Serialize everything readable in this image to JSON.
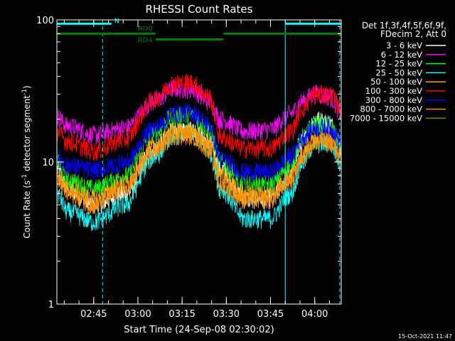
{
  "chart_data": {
    "type": "line",
    "title": "RHESSI Count Rates",
    "xlabel": "Start Time (24-Sep-08 02:30:02)",
    "ylabel_main": "Count Rate (s",
    "ylabel_sup": "-1",
    "ylabel_mid": " detector segment",
    "ylabel_sup2": "-1",
    "ylabel_end": ")",
    "yscale": "log",
    "ylim": [
      1,
      100
    ],
    "xlim_minutes": [
      2.5,
      99
    ],
    "y_ticks": [
      "1",
      "10",
      "100"
    ],
    "x_ticks": [
      {
        "label": "02:45",
        "minute": 15
      },
      {
        "label": "03:00",
        "minute": 30
      },
      {
        "label": "03:15",
        "minute": 45
      },
      {
        "label": "03:30",
        "minute": 60
      },
      {
        "label": "03:45",
        "minute": 75
      },
      {
        "label": "04:00",
        "minute": 90
      }
    ],
    "legend_header": [
      "Det 1f,3f,4f,5f,6f,9f,",
      "FDecim 2, Att 0"
    ],
    "series": [
      {
        "name": "3 - 6 keV",
        "color": "#ffffff",
        "anchors": [
          [
            2.5,
            9.0
          ],
          [
            6,
            6.5
          ],
          [
            15,
            5.0
          ],
          [
            26,
            6.0
          ],
          [
            36,
            12.5
          ],
          [
            42,
            16.5
          ],
          [
            48,
            17.0
          ],
          [
            54,
            14.0
          ],
          [
            58,
            9.0
          ],
          [
            66,
            5.5
          ],
          [
            75,
            5.5
          ],
          [
            82,
            8.0
          ],
          [
            86,
            14.0
          ],
          [
            90,
            20.0
          ],
          [
            95,
            19.0
          ],
          [
            99,
            12.5
          ]
        ]
      },
      {
        "name": "6 - 12 keV",
        "color": "#ff00ff",
        "anchors": [
          [
            2.5,
            21.0
          ],
          [
            6,
            18.0
          ],
          [
            15,
            15.5
          ],
          [
            26,
            17.5
          ],
          [
            36,
            27.0
          ],
          [
            42,
            33.0
          ],
          [
            48,
            33.0
          ],
          [
            54,
            27.0
          ],
          [
            58,
            20.0
          ],
          [
            66,
            16.5
          ],
          [
            75,
            17.0
          ],
          [
            82,
            22.0
          ],
          [
            86,
            27.0
          ],
          [
            90,
            30.5
          ],
          [
            95,
            29.0
          ],
          [
            99,
            22.5
          ]
        ]
      },
      {
        "name": "12 - 25 keV",
        "color": "#00ff00",
        "anchors": [
          [
            2.5,
            10.0
          ],
          [
            6,
            7.5
          ],
          [
            15,
            6.5
          ],
          [
            26,
            8.0
          ],
          [
            36,
            16.0
          ],
          [
            42,
            21.0
          ],
          [
            48,
            21.5
          ],
          [
            54,
            17.0
          ],
          [
            58,
            10.0
          ],
          [
            66,
            7.0
          ],
          [
            75,
            7.0
          ],
          [
            82,
            9.5
          ],
          [
            86,
            15.0
          ],
          [
            90,
            18.5
          ],
          [
            95,
            18.0
          ],
          [
            99,
            13.0
          ]
        ]
      },
      {
        "name": "25 - 50 keV",
        "color": "#00ffff",
        "anchors": [
          [
            2.5,
            6.0
          ],
          [
            6,
            4.5
          ],
          [
            15,
            3.8
          ],
          [
            26,
            5.0
          ],
          [
            36,
            11.0
          ],
          [
            42,
            15.5
          ],
          [
            48,
            16.0
          ],
          [
            54,
            12.0
          ],
          [
            58,
            6.5
          ],
          [
            66,
            4.0
          ],
          [
            75,
            4.0
          ],
          [
            82,
            6.0
          ],
          [
            86,
            10.0
          ],
          [
            90,
            13.5
          ],
          [
            95,
            13.5
          ],
          [
            99,
            10.0
          ]
        ]
      },
      {
        "name": "50 - 100 keV",
        "color": "#ffa500",
        "anchors": [
          [
            2.5,
            8.0
          ],
          [
            6,
            6.5
          ],
          [
            15,
            5.5
          ],
          [
            26,
            7.0
          ],
          [
            36,
            13.0
          ],
          [
            42,
            16.5
          ],
          [
            48,
            16.5
          ],
          [
            54,
            13.5
          ],
          [
            58,
            8.0
          ],
          [
            66,
            6.0
          ],
          [
            75,
            6.0
          ],
          [
            82,
            8.0
          ],
          [
            86,
            11.5
          ],
          [
            90,
            14.5
          ],
          [
            95,
            14.5
          ],
          [
            99,
            11.0
          ]
        ]
      },
      {
        "name": "100 - 300 keV",
        "color": "#ff0000",
        "anchors": [
          [
            2.5,
            16.5
          ],
          [
            6,
            14.0
          ],
          [
            15,
            12.0
          ],
          [
            26,
            14.5
          ],
          [
            36,
            28.0
          ],
          [
            42,
            36.0
          ],
          [
            48,
            36.5
          ],
          [
            54,
            29.0
          ],
          [
            58,
            15.0
          ],
          [
            66,
            12.5
          ],
          [
            75,
            12.5
          ],
          [
            82,
            16.5
          ],
          [
            86,
            24.0
          ],
          [
            90,
            30.0
          ],
          [
            95,
            30.0
          ],
          [
            99,
            24.0
          ]
        ]
      },
      {
        "name": "300 - 800 keV",
        "color": "#0000ff",
        "anchors": [
          [
            2.5,
            11.0
          ],
          [
            6,
            9.5
          ],
          [
            15,
            8.8
          ],
          [
            26,
            10.0
          ],
          [
            36,
            17.5
          ],
          [
            42,
            22.0
          ],
          [
            48,
            22.5
          ],
          [
            54,
            18.5
          ],
          [
            58,
            10.5
          ],
          [
            66,
            8.5
          ],
          [
            75,
            8.5
          ],
          [
            82,
            11.0
          ],
          [
            86,
            15.0
          ],
          [
            90,
            17.5
          ],
          [
            95,
            17.5
          ],
          [
            99,
            14.0
          ]
        ]
      },
      {
        "name": "800 - 7000 keV",
        "color": "#ff8c00",
        "anchors": [
          [
            2.5,
            7.5
          ],
          [
            6,
            6.0
          ],
          [
            15,
            5.0
          ],
          [
            26,
            6.5
          ],
          [
            36,
            12.0
          ],
          [
            42,
            15.5
          ],
          [
            48,
            15.5
          ],
          [
            54,
            12.5
          ],
          [
            58,
            7.0
          ],
          [
            66,
            5.5
          ],
          [
            75,
            5.5
          ],
          [
            82,
            7.5
          ],
          [
            86,
            11.0
          ],
          [
            90,
            14.0
          ],
          [
            95,
            14.0
          ],
          [
            99,
            11.0
          ]
        ]
      },
      {
        "name": "7000 - 15000 keV",
        "color": "#808000",
        "anchors": []
      }
    ],
    "flags": [
      {
        "label": "N",
        "color": "#00ffff",
        "intervals": [
          [
            2.5,
            21
          ],
          [
            80,
            99
          ]
        ],
        "y": 94
      },
      {
        "label": "RD0",
        "color": "#008000",
        "intervals": [
          [
            2.5,
            36
          ],
          [
            59,
            99
          ]
        ],
        "y": 80
      },
      {
        "label": "RD4",
        "color": "#008000",
        "intervals": [
          [
            36,
            59
          ]
        ],
        "y": 73
      }
    ],
    "vertical_lines": [
      {
        "minute": 2.5,
        "style": "solid",
        "color": "#00ffff"
      },
      {
        "minute": 18,
        "style": "dashed",
        "color": "#00ffff"
      },
      {
        "minute": 80,
        "style": "solid",
        "color": "#00ffff"
      },
      {
        "minute": 98.5,
        "style": "dashed",
        "color": "#00ffff"
      }
    ]
  },
  "footer_date": "15-Oct-2021 11:47"
}
